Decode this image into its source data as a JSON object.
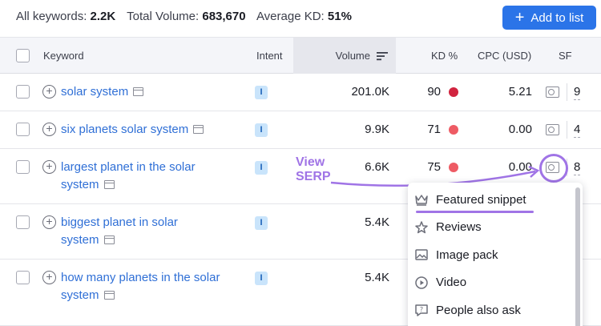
{
  "summary": {
    "keywords_label": "All keywords:",
    "keywords_value": "2.2K",
    "volume_label": "Total Volume:",
    "volume_value": "683,670",
    "kd_label": "Average KD:",
    "kd_value": "51%"
  },
  "add_button": {
    "icon": "+",
    "label": "Add to list"
  },
  "columns": {
    "keyword": "Keyword",
    "intent": "Intent",
    "volume": "Volume",
    "kd": "KD %",
    "cpc": "CPC (USD)",
    "sf": "SF"
  },
  "rows": [
    {
      "keyword_lines": [
        "solar system"
      ],
      "intent": "I",
      "volume": "201.0K",
      "kd": "90",
      "kd_color": "#d1243f",
      "cpc": "5.21",
      "sf": "9"
    },
    {
      "keyword_lines": [
        "six planets solar system"
      ],
      "intent": "I",
      "volume": "9.9K",
      "kd": "71",
      "kd_color": "#ee5b64",
      "cpc": "0.00",
      "sf": "4"
    },
    {
      "keyword_lines": [
        "largest planet in the solar",
        "system"
      ],
      "intent": "I",
      "volume": "6.6K",
      "kd": "75",
      "kd_color": "#ee5b64",
      "cpc": "0.00",
      "sf": "8"
    },
    {
      "keyword_lines": [
        "biggest planet in solar",
        "system"
      ],
      "intent": "I",
      "volume": "5.4K",
      "kd": "",
      "kd_color": "",
      "cpc": "",
      "sf": ""
    },
    {
      "keyword_lines": [
        "how many planets in the solar",
        "system"
      ],
      "intent": "I",
      "volume": "5.4K",
      "kd": "",
      "kd_color": "",
      "cpc": "",
      "sf": ""
    }
  ],
  "annotation": {
    "line1": "View",
    "line2": "SERP",
    "color": "#a074e6"
  },
  "serp_features": [
    {
      "icon": "crown-icon",
      "label": "Featured snippet"
    },
    {
      "icon": "star-icon",
      "label": "Reviews"
    },
    {
      "icon": "image-icon",
      "label": "Image pack"
    },
    {
      "icon": "play-icon",
      "label": "Video"
    },
    {
      "icon": "question-icon",
      "label": "People also ask"
    }
  ]
}
